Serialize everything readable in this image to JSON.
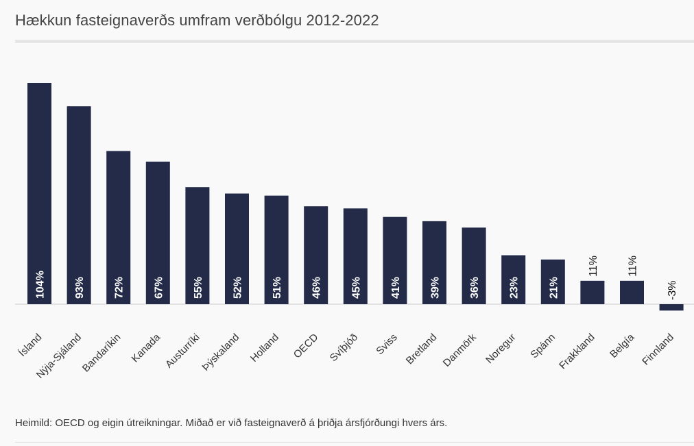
{
  "title": "Hækkun fasteignaverðs umfram verðbólgu 2012-2022",
  "source": "Heimild: OECD og eigin útreikningar. Miðað er við fasteignaverð á þriðja ársfjórðungi hvers árs.",
  "chart_data": {
    "type": "bar",
    "title": "Hækkun fasteignaverðs umfram verðbólgu 2012-2022",
    "categories": [
      "Ísland",
      "Nýja-Sjáland",
      "Bandaríkin",
      "Kanada",
      "Austurríki",
      "Þýskaland",
      "Holland",
      "OECD",
      "Svíþjóð",
      "Sviss",
      "Bretland",
      "Danmörk",
      "Noregur",
      "Spánn",
      "Frakkland",
      "Belgía",
      "Finnland"
    ],
    "values": [
      104,
      93,
      72,
      67,
      55,
      52,
      51,
      46,
      45,
      41,
      39,
      36,
      23,
      21,
      11,
      11,
      -3
    ],
    "labels": [
      "104%",
      "93%",
      "72%",
      "67%",
      "55%",
      "52%",
      "51%",
      "46%",
      "45%",
      "41%",
      "39%",
      "36%",
      "23%",
      "21%",
      "11%",
      "11%",
      "-3%"
    ],
    "ylim": [
      -3,
      104
    ],
    "grid": false,
    "legend": "none",
    "colors": {
      "bar": "#232b48",
      "inside_label": "#ffffff",
      "outside_label": "#111111",
      "baseline": "#cccccc"
    }
  }
}
